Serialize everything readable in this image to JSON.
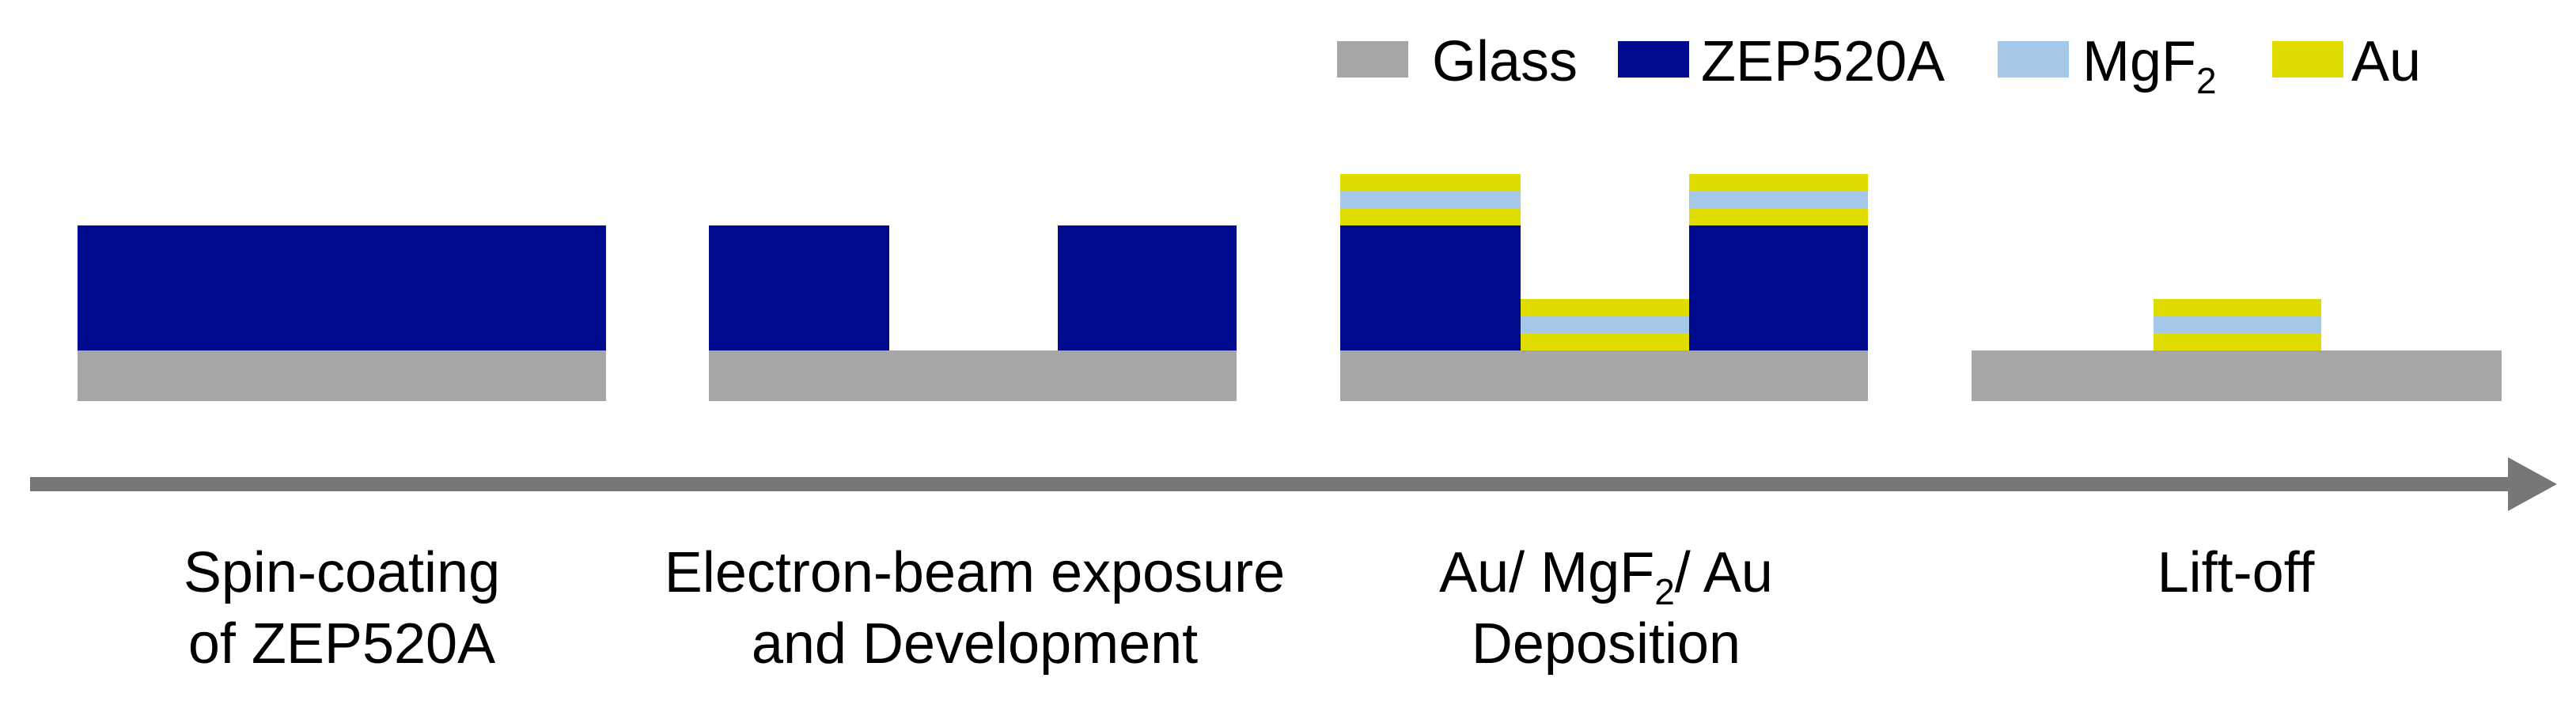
{
  "colors": {
    "glass": "#a6a6a6",
    "zep": "#000a8c",
    "mgf2": "#a6c8e8",
    "au": "#e0dc00",
    "arrow": "#777777"
  },
  "legend": [
    {
      "key": "glass",
      "label": "Glass"
    },
    {
      "key": "zep",
      "label": "ZEP520A"
    },
    {
      "key": "mgf2",
      "label": "MgF",
      "subscript": "2"
    },
    {
      "key": "au",
      "label": "Au"
    }
  ],
  "steps": [
    {
      "line1": "Spin-coating",
      "line2": "of ZEP520A"
    },
    {
      "line1": "Electron-beam exposure",
      "line2": "and Development"
    },
    {
      "line1_parts": [
        "Au/ MgF",
        "2",
        "/ Au"
      ],
      "line2": "Deposition"
    },
    {
      "line1": "Lift-off",
      "line2": ""
    }
  ]
}
